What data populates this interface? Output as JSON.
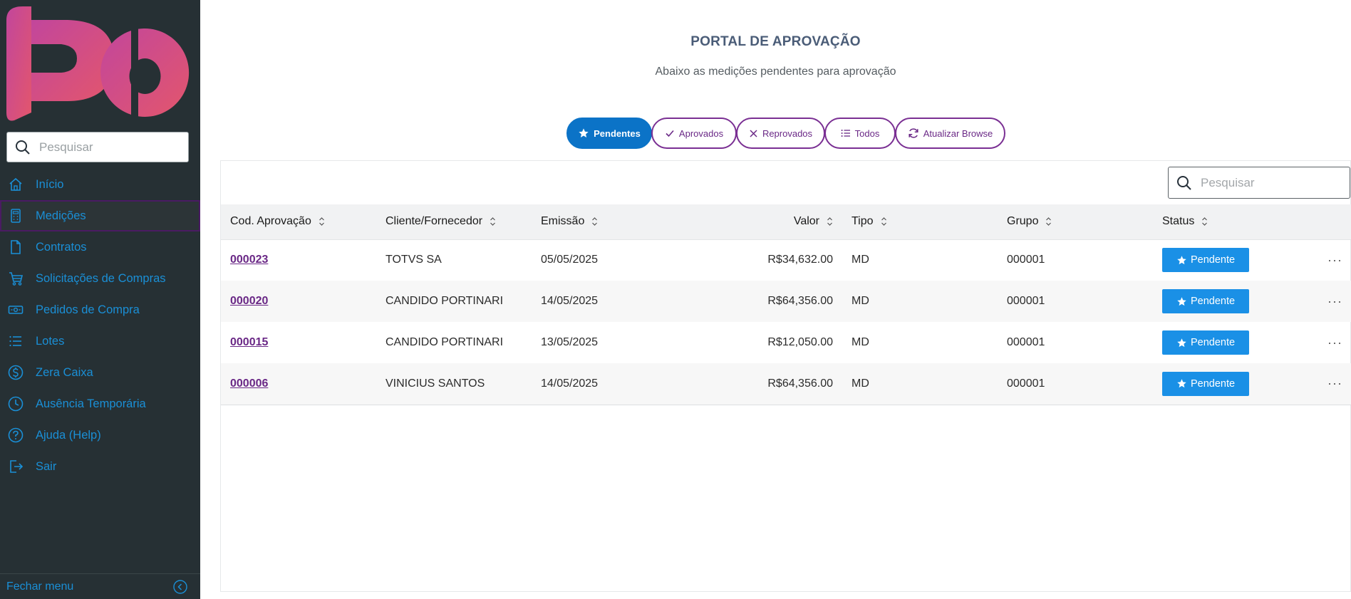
{
  "sidebar": {
    "search_placeholder": "Pesquisar",
    "items": [
      {
        "label": "Início",
        "icon": "home-icon"
      },
      {
        "label": "Medições",
        "icon": "calculator-icon"
      },
      {
        "label": "Contratos",
        "icon": "document-icon"
      },
      {
        "label": "Solicitações de Compras",
        "icon": "cart-icon"
      },
      {
        "label": "Pedidos de Compra",
        "icon": "money-icon"
      },
      {
        "label": "Lotes",
        "icon": "list-icon"
      },
      {
        "label": "Zera Caixa",
        "icon": "dollar-icon"
      },
      {
        "label": "Ausência Temporária",
        "icon": "clock-icon"
      },
      {
        "label": "Ajuda (Help)",
        "icon": "help-icon"
      },
      {
        "label": "Sair",
        "icon": "exit-icon"
      }
    ],
    "active_index": 1,
    "footer_label": "Fechar menu"
  },
  "header": {
    "title": "PORTAL DE APROVAÇÃO",
    "subtitle": "Abaixo as medições pendentes para aprovação"
  },
  "tabs": [
    {
      "label": "Pendentes",
      "icon": "star-icon",
      "active": true
    },
    {
      "label": "Aprovados",
      "icon": "check-icon",
      "active": false
    },
    {
      "label": "Reprovados",
      "icon": "close-icon",
      "active": false
    },
    {
      "label": "Todos",
      "icon": "list-icon",
      "active": false
    },
    {
      "label": "Atualizar Browse",
      "icon": "refresh-icon",
      "active": false
    }
  ],
  "table": {
    "search_placeholder": "Pesquisar",
    "columns": [
      "Cod. Aprovação",
      "Cliente/Fornecedor",
      "Emissão",
      "Valor",
      "Tipo",
      "Grupo",
      "Status"
    ],
    "rows": [
      {
        "code": "000023",
        "client": "TOTVS SA",
        "date": "05/05/2025",
        "value": "R$34,632.00",
        "type": "MD",
        "group": "000001",
        "status": "Pendente"
      },
      {
        "code": "000020",
        "client": "CANDIDO PORTINARI",
        "date": "14/05/2025",
        "value": "R$64,356.00",
        "type": "MD",
        "group": "000001",
        "status": "Pendente"
      },
      {
        "code": "000015",
        "client": "CANDIDO PORTINARI",
        "date": "13/05/2025",
        "value": "R$12,050.00",
        "type": "MD",
        "group": "000001",
        "status": "Pendente"
      },
      {
        "code": "000006",
        "client": "VINICIUS SANTOS",
        "date": "14/05/2025",
        "value": "R$64,356.00",
        "type": "MD",
        "group": "000001",
        "status": "Pendente"
      }
    ],
    "row_action_label": "···"
  },
  "colors": {
    "sidebar_bg": "#263034",
    "link": "#1a8fd6",
    "accent_purple": "#6a2886",
    "primary_blue": "#0b73c7",
    "badge_blue": "#1a90e6",
    "logo_gradient": [
      "#c2469c",
      "#e3566c"
    ]
  }
}
